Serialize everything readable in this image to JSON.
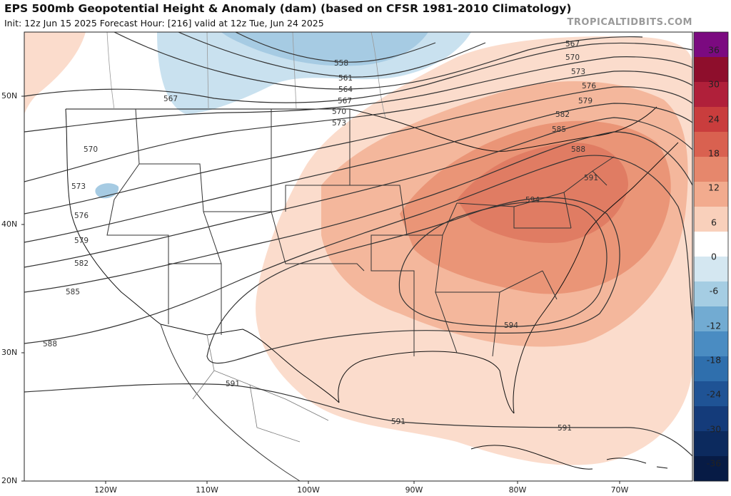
{
  "header": {
    "title": "EPS 500mb Geopotential Height & Anomaly (dam) (based on CFSR 1981-2010 Climatology)",
    "subtitle": "Init: 12z Jun 15 2025   Forecast Hour: [216]   valid at 12z Tue, Jun 24 2025",
    "credit": "TROPICALTIDBITS.COM"
  },
  "axes": {
    "latitude_labels": [
      "50N",
      "40N",
      "30N",
      "20N"
    ],
    "longitude_labels": [
      "120W",
      "110W",
      "100W",
      "90W",
      "80W",
      "70W"
    ]
  },
  "colorbar": {
    "labels": [
      "36",
      "30",
      "24",
      "18",
      "12",
      "6",
      "0",
      "-6",
      "-12",
      "-18",
      "-24",
      "-30",
      "-36"
    ],
    "colors": [
      "#7b0a80",
      "#8e0e2c",
      "#b0203a",
      "#c93d3d",
      "#d96150",
      "#e6876c",
      "#f2ab8e",
      "#f9d0bb",
      "#ffffff",
      "#d4e7f1",
      "#a5cde3",
      "#72abd2",
      "#4a8cc2",
      "#2f6fad",
      "#1f5395",
      "#143b7a",
      "#0c2a5e",
      "#071b45"
    ]
  },
  "contours": {
    "labels": [
      "558",
      "561",
      "564",
      "567",
      "567",
      "567",
      "570",
      "570",
      "570",
      "573",
      "573",
      "573",
      "576",
      "576",
      "579",
      "579",
      "582",
      "582",
      "585",
      "585",
      "588",
      "588",
      "591",
      "591",
      "591",
      "591",
      "594",
      "594"
    ]
  },
  "anomaly_colors": {
    "positive_light": "#fbdccc",
    "positive_mid": "#f4b79c",
    "positive_strong": "#ea9577",
    "positive_core": "#e07c63",
    "negative_light": "#c9e1ef",
    "negative_mid": "#a6cbe3"
  }
}
